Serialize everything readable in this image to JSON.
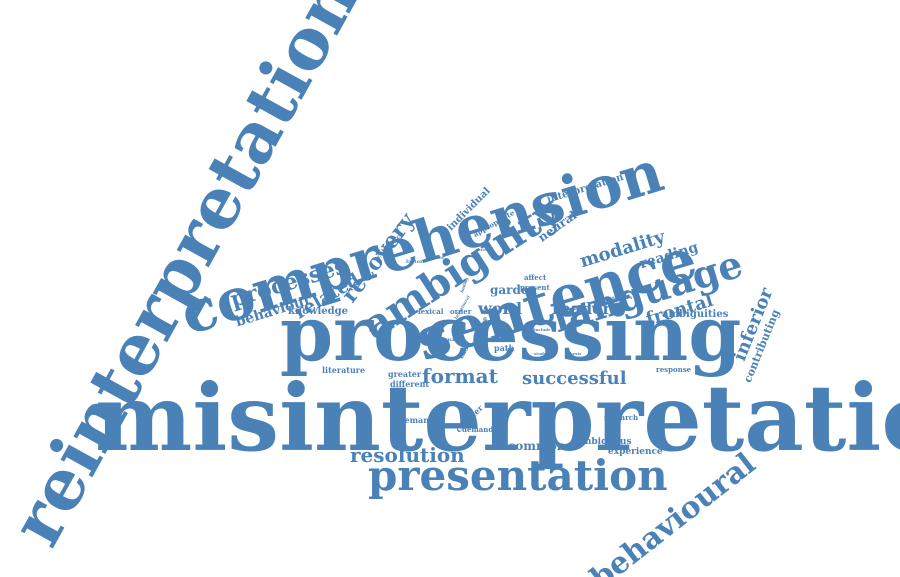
{
  "colors": {
    "word": "#4a82b8",
    "background": "#ffffff"
  },
  "words": [
    {
      "id": "misinterpretation",
      "text": "misinterpretation"
    },
    {
      "id": "processing",
      "text": "processing"
    },
    {
      "id": "reinterpretation",
      "text": "reinterpretation"
    },
    {
      "id": "comprehension",
      "text": "comprehension"
    },
    {
      "id": "sentence",
      "text": "sentence"
    },
    {
      "id": "presentation",
      "text": "presentation"
    },
    {
      "id": "ambiguity",
      "text": "ambiguity"
    },
    {
      "id": "language",
      "text": "language"
    },
    {
      "id": "behavioural-1",
      "text": "behavioural"
    },
    {
      "id": "processes",
      "text": "processes"
    },
    {
      "id": "resolution",
      "text": "resolution"
    },
    {
      "id": "format",
      "text": "format"
    },
    {
      "id": "recovery",
      "text": "recovery"
    },
    {
      "id": "successful",
      "text": "successful"
    },
    {
      "id": "modality",
      "text": "modality"
    },
    {
      "id": "related",
      "text": "related"
    },
    {
      "id": "frontal",
      "text": "frontal"
    },
    {
      "id": "inferior",
      "text": "inferior"
    },
    {
      "id": "word",
      "text": "word"
    },
    {
      "id": "reader",
      "text": "reader"
    },
    {
      "id": "reading",
      "text": "reading"
    },
    {
      "id": "behaviour",
      "text": "behaviour"
    },
    {
      "id": "garden",
      "text": "garden"
    },
    {
      "id": "neural",
      "text": "neural"
    },
    {
      "id": "common",
      "text": "common"
    },
    {
      "id": "contributing",
      "text": "contributing"
    },
    {
      "id": "interpretation",
      "text": "interpretation"
    },
    {
      "id": "individual",
      "text": "individual"
    },
    {
      "id": "knowledge",
      "text": "knowledge"
    },
    {
      "id": "ambiguities",
      "text": "ambiguities"
    },
    {
      "id": "experience",
      "text": "experience"
    },
    {
      "id": "ambiguous",
      "text": "ambiguous"
    },
    {
      "id": "greater",
      "text": "greater"
    },
    {
      "id": "different",
      "text": "different"
    },
    {
      "id": "literature",
      "text": "literature"
    },
    {
      "id": "semantic",
      "text": "semantic"
    },
    {
      "id": "chapter",
      "text": "chapter"
    },
    {
      "id": "demand",
      "text": "demand"
    },
    {
      "id": "research",
      "text": "research"
    },
    {
      "id": "response",
      "text": "response"
    },
    {
      "id": "path",
      "text": "path"
    },
    {
      "id": "task",
      "text": "task"
    },
    {
      "id": "lexical",
      "text": "lexical"
    },
    {
      "id": "order",
      "text": "order"
    },
    {
      "id": "visual",
      "text": "visual"
    },
    {
      "id": "appropriate",
      "text": "appropriate"
    },
    {
      "id": "coherence",
      "text": "coherence"
    },
    {
      "id": "higher",
      "text": "higher"
    },
    {
      "id": "factor",
      "text": "factor"
    },
    {
      "id": "affect",
      "text": "affect"
    },
    {
      "id": "present",
      "text": "present"
    },
    {
      "id": "studies",
      "text": "studies"
    },
    {
      "id": "system",
      "text": "system"
    },
    {
      "id": "study",
      "text": "study"
    },
    {
      "id": "thesis",
      "text": "thesis"
    },
    {
      "id": "result",
      "text": "result"
    },
    {
      "id": "include",
      "text": "include"
    },
    {
      "id": "finding",
      "text": "finding"
    },
    {
      "id": "recover",
      "text": "recover"
    },
    {
      "id": "adapt",
      "text": "adapt"
    },
    {
      "id": "more",
      "text": "more"
    },
    {
      "id": "behavioural-2",
      "text": "behavioural"
    }
  ]
}
